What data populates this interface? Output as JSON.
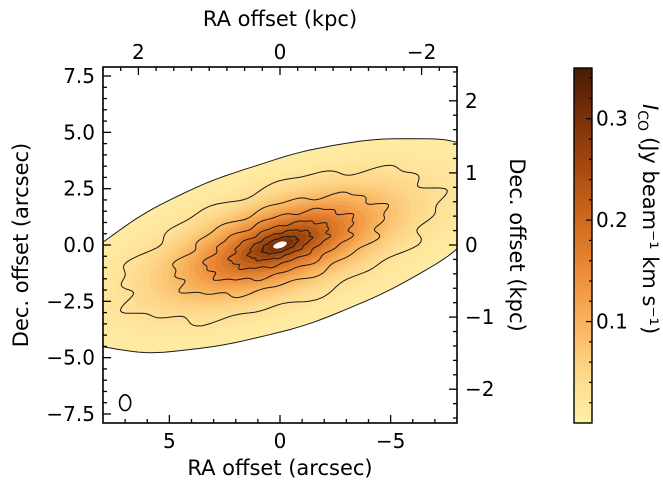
{
  "chart_data": {
    "type": "heatmap",
    "title": "",
    "description_units": "intensity map",
    "xlabel_bottom": "RA offset (arcsec)",
    "xlabel_top": "RA offset (kpc)",
    "ylabel_left": "Dec. offset (arcsec)",
    "ylabel_right": "Dec. offset (kpc)",
    "colorbar_label": "I_CO (Jy beam⁻¹ km s⁻¹)",
    "colorbar_label_parts": {
      "symbol": "I",
      "subscript": "CO",
      "units": "(Jy beam⁻¹ km s⁻¹)"
    },
    "xlim": [
      8.0,
      -8.0
    ],
    "ylim": [
      -7.9,
      7.9
    ],
    "colorbar_lim": [
      0.0,
      0.35
    ],
    "x_ticks_bottom": [
      -5,
      0,
      5
    ],
    "x_tick_labels_bottom": [
      "−5",
      "0",
      "5"
    ],
    "y_ticks_left": [
      7.5,
      5.0,
      2.5,
      0.0,
      -2.5,
      -5.0,
      -7.5
    ],
    "y_tick_labels_left": [
      "7.5",
      "5.0",
      "2.5",
      "0.0",
      "−2.5",
      "−5.0",
      "−7.5"
    ],
    "x_ticks_top_kpc": [
      -2,
      0,
      2
    ],
    "x_tick_labels_top": [
      "−2",
      "0",
      "2"
    ],
    "y_ticks_right_kpc": [
      2,
      1,
      0,
      -1,
      -2
    ],
    "y_tick_labels_right": [
      "2",
      "1",
      "0",
      "−1",
      "−2"
    ],
    "kpc_per_arcsec": 0.3125,
    "colorbar_ticks": [
      0.1,
      0.2,
      0.3
    ],
    "colorbar_tick_labels": [
      "0.1",
      "0.2",
      "0.3"
    ],
    "colormap_stops": [
      "#fff0a8",
      "#fdd78a",
      "#f9b25c",
      "#ec8a38",
      "#cf6a1d",
      "#a84a10",
      "#7a3209",
      "#4a1b06"
    ],
    "source": {
      "center": [
        0.0,
        0.0
      ],
      "major_axis_arcsec": 10.5,
      "minor_axis_arcsec": 3.7,
      "position_angle_deg": 18,
      "peak_intensity": 0.34
    },
    "contour_levels": [
      0.01,
      0.04,
      0.08,
      0.13,
      0.19,
      0.25,
      0.3
    ],
    "beam": {
      "x": 7.0,
      "y": -7.0,
      "major_arcsec": 0.35,
      "minor_arcsec": 0.25
    }
  }
}
